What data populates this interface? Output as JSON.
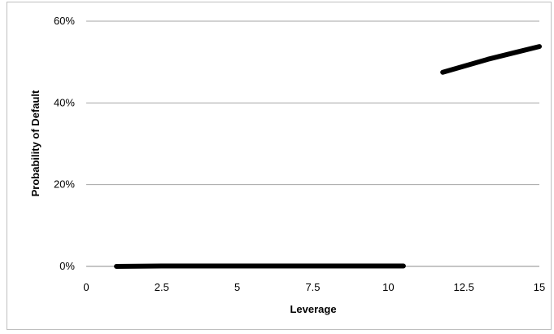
{
  "chart_data": {
    "type": "line",
    "title": "",
    "xlabel": "Leverage",
    "ylabel": "Probability of Default",
    "xlim": [
      0,
      15
    ],
    "ylim": [
      0,
      60
    ],
    "x_ticks": [
      0,
      2.5,
      5,
      7.5,
      10,
      12.5,
      15
    ],
    "x_tick_labels": [
      "0",
      "2.5",
      "5",
      "7.5",
      "10",
      "12.5",
      "15"
    ],
    "y_ticks": [
      0,
      20,
      40,
      60
    ],
    "y_tick_labels": [
      "0%",
      "20%",
      "40%",
      "60%"
    ],
    "y_unit": "%",
    "grid": "horizontal",
    "legend": "none",
    "line_color": "#000000",
    "series": [
      {
        "segments": [
          [
            [
              1.0,
              0
            ],
            [
              2.5,
              0.1
            ],
            [
              5,
              0.1
            ],
            [
              7.5,
              0.1
            ],
            [
              10.5,
              0.1
            ]
          ],
          [
            [
              11.8,
              47.5
            ],
            [
              13.3,
              50.7
            ],
            [
              15,
              53.8
            ]
          ]
        ]
      }
    ]
  }
}
